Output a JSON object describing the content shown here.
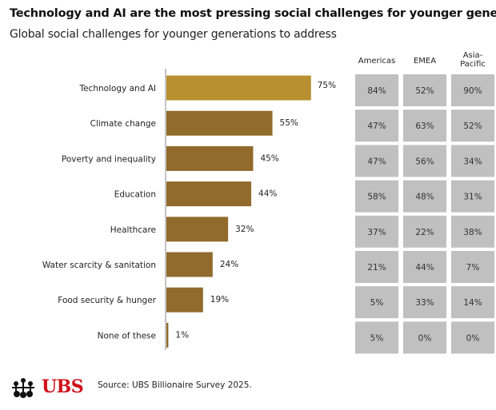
{
  "chart_data": {
    "type": "bar",
    "orientation": "horizontal",
    "title": "Technology and AI are the most pressing social challenges for younger generations",
    "subtitle": "Global social challenges for younger generations to address",
    "categories": [
      "Technology and AI",
      "Climate change",
      "Poverty and inequality",
      "Education",
      "Healthcare",
      "Water scarcity & sanitation",
      "Food security & hunger",
      "None of these"
    ],
    "values": [
      75,
      55,
      45,
      44,
      32,
      24,
      19,
      1
    ],
    "value_labels": [
      "75%",
      "55%",
      "45%",
      "44%",
      "32%",
      "24%",
      "19%",
      "1%"
    ],
    "colors": {
      "highlight": "#b8902f",
      "bar": "#916b2c",
      "cell": "#c0c0c0"
    },
    "xlim": [
      0,
      100
    ],
    "grid": false,
    "regional_table": {
      "columns": [
        "Americas",
        "EMEA",
        "Asia-\nPacific"
      ],
      "rows": [
        [
          "84%",
          "52%",
          "90%"
        ],
        [
          "47%",
          "63%",
          "52%"
        ],
        [
          "47%",
          "56%",
          "34%"
        ],
        [
          "58%",
          "48%",
          "31%"
        ],
        [
          "37%",
          "22%",
          "38%"
        ],
        [
          "21%",
          "44%",
          "7%"
        ],
        [
          "5%",
          "33%",
          "14%"
        ],
        [
          "5%",
          "0%",
          "0%"
        ]
      ]
    }
  },
  "footer": {
    "source": "Source: UBS Billionaire Survey 2025.",
    "logo": "UBS"
  }
}
